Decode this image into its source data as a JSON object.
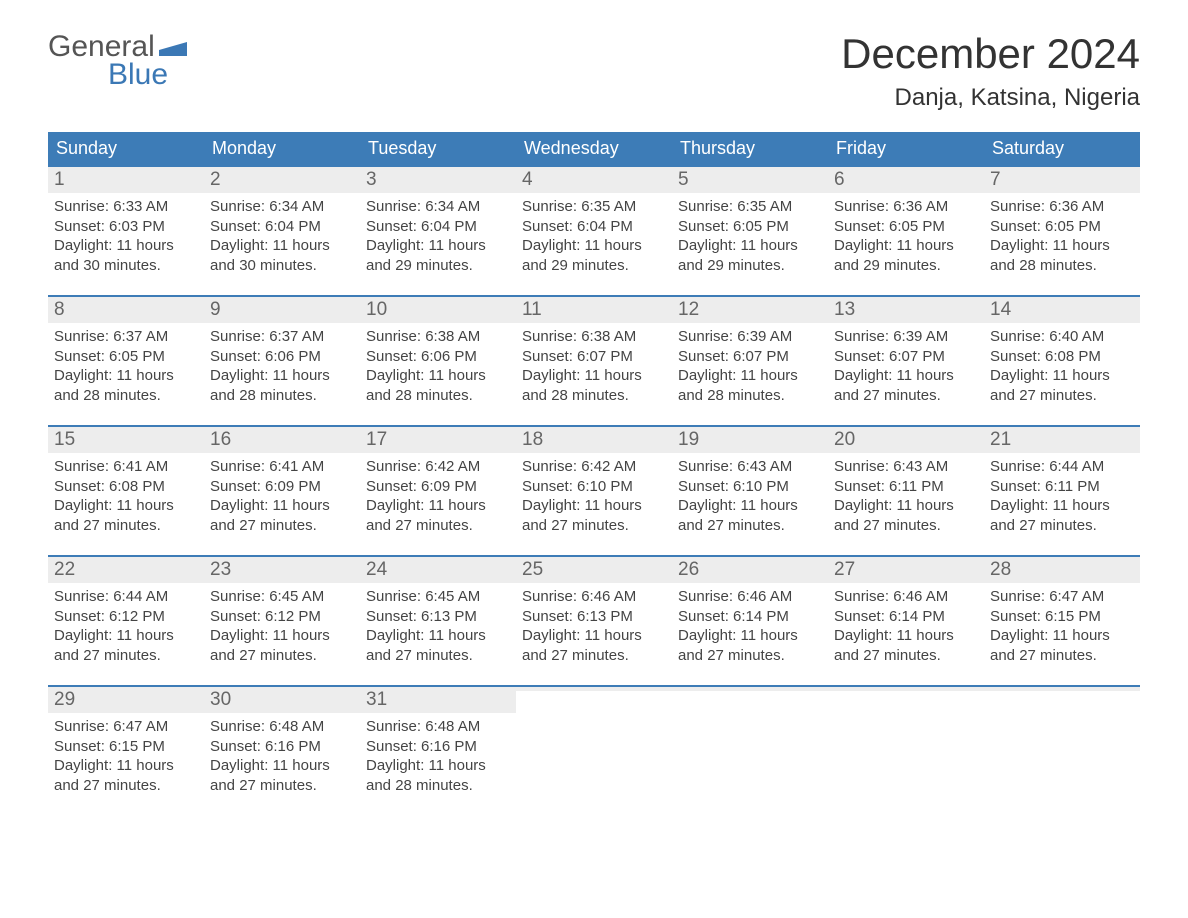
{
  "brand": {
    "top": "General",
    "bottom": "Blue",
    "accent_color": "#3b78b5"
  },
  "title": {
    "month": "December 2024",
    "location": "Danja, Katsina, Nigeria"
  },
  "colors": {
    "header_bg": "#3d7cb7",
    "header_text": "#ffffff",
    "daynum_bg": "#ededed",
    "daynum_text": "#666666",
    "body_text": "#444444",
    "week_border": "#3d7cb7",
    "page_bg": "#ffffff"
  },
  "typography": {
    "title_fontsize": 42,
    "location_fontsize": 24,
    "dayheader_fontsize": 18,
    "daynum_fontsize": 19,
    "cell_fontsize": 15
  },
  "layout": {
    "columns": 7,
    "rows": 5,
    "cell_min_height": 112
  },
  "day_labels": [
    "Sunday",
    "Monday",
    "Tuesday",
    "Wednesday",
    "Thursday",
    "Friday",
    "Saturday"
  ],
  "weeks": [
    [
      {
        "day": "1",
        "sunrise": "Sunrise: 6:33 AM",
        "sunset": "Sunset: 6:03 PM",
        "daylight1": "Daylight: 11 hours",
        "daylight2": "and 30 minutes."
      },
      {
        "day": "2",
        "sunrise": "Sunrise: 6:34 AM",
        "sunset": "Sunset: 6:04 PM",
        "daylight1": "Daylight: 11 hours",
        "daylight2": "and 30 minutes."
      },
      {
        "day": "3",
        "sunrise": "Sunrise: 6:34 AM",
        "sunset": "Sunset: 6:04 PM",
        "daylight1": "Daylight: 11 hours",
        "daylight2": "and 29 minutes."
      },
      {
        "day": "4",
        "sunrise": "Sunrise: 6:35 AM",
        "sunset": "Sunset: 6:04 PM",
        "daylight1": "Daylight: 11 hours",
        "daylight2": "and 29 minutes."
      },
      {
        "day": "5",
        "sunrise": "Sunrise: 6:35 AM",
        "sunset": "Sunset: 6:05 PM",
        "daylight1": "Daylight: 11 hours",
        "daylight2": "and 29 minutes."
      },
      {
        "day": "6",
        "sunrise": "Sunrise: 6:36 AM",
        "sunset": "Sunset: 6:05 PM",
        "daylight1": "Daylight: 11 hours",
        "daylight2": "and 29 minutes."
      },
      {
        "day": "7",
        "sunrise": "Sunrise: 6:36 AM",
        "sunset": "Sunset: 6:05 PM",
        "daylight1": "Daylight: 11 hours",
        "daylight2": "and 28 minutes."
      }
    ],
    [
      {
        "day": "8",
        "sunrise": "Sunrise: 6:37 AM",
        "sunset": "Sunset: 6:05 PM",
        "daylight1": "Daylight: 11 hours",
        "daylight2": "and 28 minutes."
      },
      {
        "day": "9",
        "sunrise": "Sunrise: 6:37 AM",
        "sunset": "Sunset: 6:06 PM",
        "daylight1": "Daylight: 11 hours",
        "daylight2": "and 28 minutes."
      },
      {
        "day": "10",
        "sunrise": "Sunrise: 6:38 AM",
        "sunset": "Sunset: 6:06 PM",
        "daylight1": "Daylight: 11 hours",
        "daylight2": "and 28 minutes."
      },
      {
        "day": "11",
        "sunrise": "Sunrise: 6:38 AM",
        "sunset": "Sunset: 6:07 PM",
        "daylight1": "Daylight: 11 hours",
        "daylight2": "and 28 minutes."
      },
      {
        "day": "12",
        "sunrise": "Sunrise: 6:39 AM",
        "sunset": "Sunset: 6:07 PM",
        "daylight1": "Daylight: 11 hours",
        "daylight2": "and 28 minutes."
      },
      {
        "day": "13",
        "sunrise": "Sunrise: 6:39 AM",
        "sunset": "Sunset: 6:07 PM",
        "daylight1": "Daylight: 11 hours",
        "daylight2": "and 27 minutes."
      },
      {
        "day": "14",
        "sunrise": "Sunrise: 6:40 AM",
        "sunset": "Sunset: 6:08 PM",
        "daylight1": "Daylight: 11 hours",
        "daylight2": "and 27 minutes."
      }
    ],
    [
      {
        "day": "15",
        "sunrise": "Sunrise: 6:41 AM",
        "sunset": "Sunset: 6:08 PM",
        "daylight1": "Daylight: 11 hours",
        "daylight2": "and 27 minutes."
      },
      {
        "day": "16",
        "sunrise": "Sunrise: 6:41 AM",
        "sunset": "Sunset: 6:09 PM",
        "daylight1": "Daylight: 11 hours",
        "daylight2": "and 27 minutes."
      },
      {
        "day": "17",
        "sunrise": "Sunrise: 6:42 AM",
        "sunset": "Sunset: 6:09 PM",
        "daylight1": "Daylight: 11 hours",
        "daylight2": "and 27 minutes."
      },
      {
        "day": "18",
        "sunrise": "Sunrise: 6:42 AM",
        "sunset": "Sunset: 6:10 PM",
        "daylight1": "Daylight: 11 hours",
        "daylight2": "and 27 minutes."
      },
      {
        "day": "19",
        "sunrise": "Sunrise: 6:43 AM",
        "sunset": "Sunset: 6:10 PM",
        "daylight1": "Daylight: 11 hours",
        "daylight2": "and 27 minutes."
      },
      {
        "day": "20",
        "sunrise": "Sunrise: 6:43 AM",
        "sunset": "Sunset: 6:11 PM",
        "daylight1": "Daylight: 11 hours",
        "daylight2": "and 27 minutes."
      },
      {
        "day": "21",
        "sunrise": "Sunrise: 6:44 AM",
        "sunset": "Sunset: 6:11 PM",
        "daylight1": "Daylight: 11 hours",
        "daylight2": "and 27 minutes."
      }
    ],
    [
      {
        "day": "22",
        "sunrise": "Sunrise: 6:44 AM",
        "sunset": "Sunset: 6:12 PM",
        "daylight1": "Daylight: 11 hours",
        "daylight2": "and 27 minutes."
      },
      {
        "day": "23",
        "sunrise": "Sunrise: 6:45 AM",
        "sunset": "Sunset: 6:12 PM",
        "daylight1": "Daylight: 11 hours",
        "daylight2": "and 27 minutes."
      },
      {
        "day": "24",
        "sunrise": "Sunrise: 6:45 AM",
        "sunset": "Sunset: 6:13 PM",
        "daylight1": "Daylight: 11 hours",
        "daylight2": "and 27 minutes."
      },
      {
        "day": "25",
        "sunrise": "Sunrise: 6:46 AM",
        "sunset": "Sunset: 6:13 PM",
        "daylight1": "Daylight: 11 hours",
        "daylight2": "and 27 minutes."
      },
      {
        "day": "26",
        "sunrise": "Sunrise: 6:46 AM",
        "sunset": "Sunset: 6:14 PM",
        "daylight1": "Daylight: 11 hours",
        "daylight2": "and 27 minutes."
      },
      {
        "day": "27",
        "sunrise": "Sunrise: 6:46 AM",
        "sunset": "Sunset: 6:14 PM",
        "daylight1": "Daylight: 11 hours",
        "daylight2": "and 27 minutes."
      },
      {
        "day": "28",
        "sunrise": "Sunrise: 6:47 AM",
        "sunset": "Sunset: 6:15 PM",
        "daylight1": "Daylight: 11 hours",
        "daylight2": "and 27 minutes."
      }
    ],
    [
      {
        "day": "29",
        "sunrise": "Sunrise: 6:47 AM",
        "sunset": "Sunset: 6:15 PM",
        "daylight1": "Daylight: 11 hours",
        "daylight2": "and 27 minutes."
      },
      {
        "day": "30",
        "sunrise": "Sunrise: 6:48 AM",
        "sunset": "Sunset: 6:16 PM",
        "daylight1": "Daylight: 11 hours",
        "daylight2": "and 27 minutes."
      },
      {
        "day": "31",
        "sunrise": "Sunrise: 6:48 AM",
        "sunset": "Sunset: 6:16 PM",
        "daylight1": "Daylight: 11 hours",
        "daylight2": "and 28 minutes."
      },
      {
        "empty": true,
        "day": " ",
        "sunrise": "",
        "sunset": "",
        "daylight1": "",
        "daylight2": ""
      },
      {
        "empty": true,
        "day": " ",
        "sunrise": "",
        "sunset": "",
        "daylight1": "",
        "daylight2": ""
      },
      {
        "empty": true,
        "day": " ",
        "sunrise": "",
        "sunset": "",
        "daylight1": "",
        "daylight2": ""
      },
      {
        "empty": true,
        "day": " ",
        "sunrise": "",
        "sunset": "",
        "daylight1": "",
        "daylight2": ""
      }
    ]
  ]
}
